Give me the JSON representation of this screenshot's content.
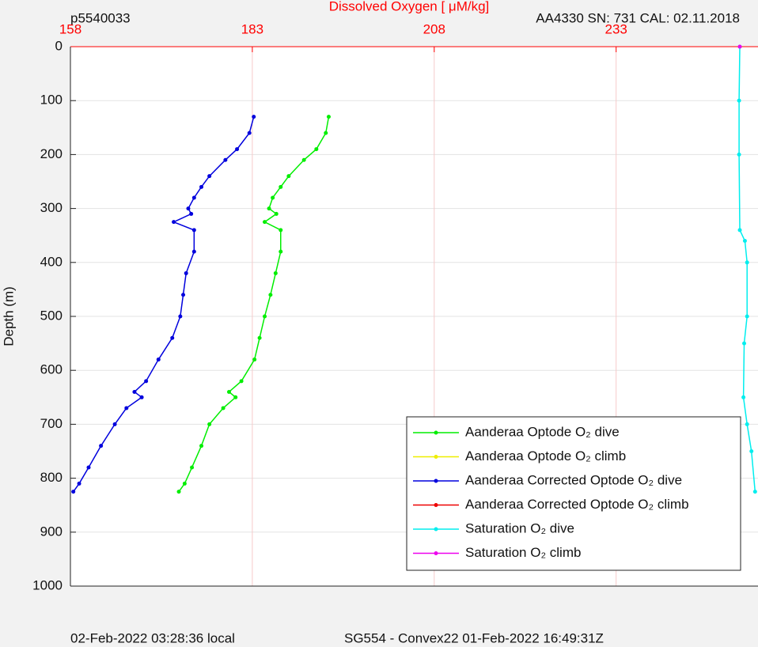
{
  "chart_data": {
    "type": "line",
    "title": "Dissolved Oxygen [ μM/kg]",
    "title_color": "#ff0000",
    "top_left_label": "p5540033",
    "top_right_label": "AA4330   SN: 731  CAL: 02.11.2018",
    "footer_left": "02-Feb-2022 03:28:36 local",
    "footer_right": "SG554 - Convex22 01-Feb-2022 16:49:31Z",
    "y_label": "Depth (m)",
    "xlim": [
      158,
      252.5
    ],
    "xticks": [
      158,
      183,
      208,
      233
    ],
    "x_axis_position": "top",
    "ylim": [
      0,
      1000
    ],
    "yticks": [
      0,
      100,
      200,
      300,
      400,
      500,
      600,
      700,
      800,
      900,
      1000
    ],
    "y_reversed": true,
    "grid": true,
    "legend_position": "lower right",
    "series": [
      {
        "name": "Aanderaa Optode O₂ dive",
        "color": "#00ee00",
        "depth": [
          130,
          160,
          190,
          210,
          240,
          260,
          280,
          300,
          310,
          325,
          340,
          380,
          420,
          460,
          500,
          540,
          580,
          620,
          640,
          650,
          670,
          700,
          740,
          780,
          810,
          825
        ],
        "values": [
          193.5,
          193.1,
          191.8,
          190.1,
          188.0,
          186.9,
          185.8,
          185.3,
          186.3,
          184.7,
          186.9,
          186.9,
          186.2,
          185.5,
          184.7,
          184.0,
          183.3,
          181.5,
          179.8,
          180.7,
          179.0,
          177.1,
          176.0,
          174.7,
          173.7,
          172.9
        ]
      },
      {
        "name": "Aanderaa Optode O₂ climb",
        "color": "#eeee00",
        "depth": [],
        "values": []
      },
      {
        "name": "Aanderaa Corrected Optode O₂ dive",
        "color": "#0000dd",
        "depth": [
          130,
          160,
          190,
          210,
          240,
          260,
          280,
          300,
          310,
          325,
          340,
          380,
          420,
          460,
          500,
          540,
          580,
          620,
          640,
          650,
          670,
          700,
          740,
          780,
          810,
          825
        ],
        "values": [
          183.2,
          182.6,
          180.9,
          179.3,
          177.1,
          176.0,
          175.0,
          174.2,
          174.6,
          172.2,
          175.0,
          175.0,
          173.9,
          173.5,
          173.1,
          172.0,
          170.1,
          168.4,
          166.8,
          167.8,
          165.7,
          164.1,
          162.2,
          160.5,
          159.2,
          158.4
        ]
      },
      {
        "name": "Aanderaa Corrected Optode O₂ climb",
        "color": "#ee0000",
        "depth": [],
        "values": []
      },
      {
        "name": "Saturation O₂ dive",
        "color": "#00eeee",
        "depth": [
          0,
          100,
          200,
          340,
          360,
          400,
          500,
          550,
          650,
          700,
          750,
          825
        ],
        "values": [
          250.0,
          249.9,
          249.9,
          250.0,
          250.7,
          251.0,
          251.0,
          250.6,
          250.5,
          251.0,
          251.6,
          252.1
        ]
      },
      {
        "name": "Saturation O₂ climb",
        "color": "#ee00ee",
        "depth": [
          0
        ],
        "values": [
          250.0
        ]
      }
    ]
  }
}
